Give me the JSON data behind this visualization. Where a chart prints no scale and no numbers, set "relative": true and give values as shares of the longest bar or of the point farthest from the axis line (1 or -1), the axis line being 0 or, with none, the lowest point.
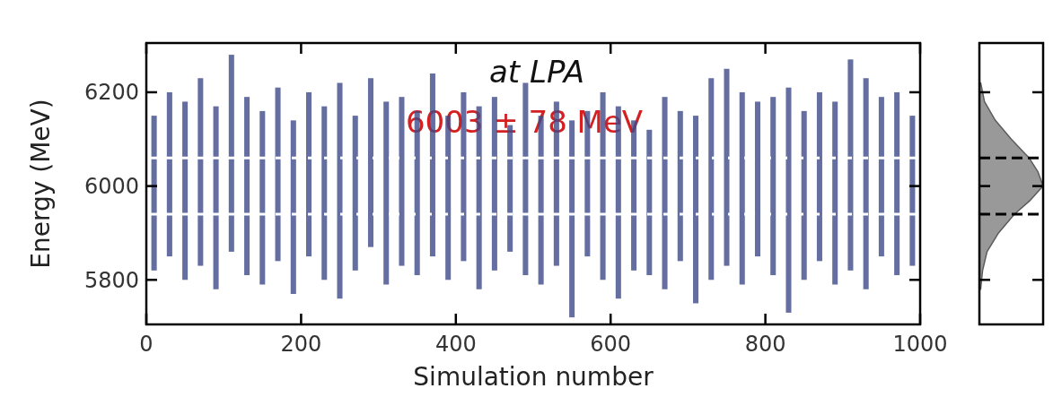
{
  "chart_data": [
    {
      "type": "bar",
      "xlabel": "Simulation number",
      "ylabel": "Energy (MeV)",
      "annotations": [
        "at LPA",
        "6003 ± 78 MeV"
      ],
      "x": [
        10,
        30,
        50,
        70,
        90,
        110,
        130,
        150,
        170,
        190,
        210,
        230,
        250,
        270,
        290,
        310,
        330,
        350,
        370,
        390,
        410,
        430,
        450,
        470,
        490,
        510,
        530,
        550,
        570,
        590,
        610,
        630,
        650,
        670,
        690,
        710,
        730,
        750,
        770,
        790,
        810,
        830,
        850,
        870,
        890,
        910,
        930,
        950,
        970,
        990
      ],
      "base": [
        5820,
        5850,
        5800,
        5830,
        5780,
        5860,
        5810,
        5790,
        5840,
        5770,
        5850,
        5800,
        5760,
        5820,
        5870,
        5790,
        5830,
        5810,
        5850,
        5800,
        5840,
        5780,
        5820,
        5860,
        5810,
        5790,
        5830,
        5720,
        5850,
        5800,
        5760,
        5820,
        5810,
        5780,
        5840,
        5750,
        5800,
        5830,
        5790,
        5850,
        5810,
        5730,
        5800,
        5840,
        5790,
        5820,
        5780,
        5850,
        5810,
        5830
      ],
      "values": [
        330,
        350,
        380,
        400,
        390,
        420,
        380,
        370,
        370,
        370,
        350,
        370,
        460,
        330,
        360,
        390,
        360,
        350,
        390,
        350,
        360,
        390,
        370,
        270,
        410,
        360,
        350,
        420,
        310,
        400,
        410,
        320,
        310,
        410,
        320,
        400,
        430,
        420,
        410,
        330,
        380,
        480,
        360,
        360,
        390,
        450,
        450,
        340,
        390,
        320
      ],
      "color": "#3e4a89",
      "xlim": [
        0,
        1000
      ],
      "xticks": [
        0,
        200,
        400,
        600,
        800,
        1000
      ],
      "ylim": [
        5705,
        6305
      ],
      "yticks": [
        5800,
        6000,
        6200
      ],
      "ref_lines": [
        {
          "axis": "y",
          "value": 6060,
          "color": "#ffffff",
          "line_style": "dashed"
        },
        {
          "axis": "y",
          "value": 5940,
          "color": "#ffffff",
          "line_style": "dashed"
        }
      ]
    },
    {
      "type": "area",
      "orientation": "horizontal",
      "relative": true,
      "color": "#808080",
      "tick_labels": false,
      "x": [
        5780,
        5820,
        5860,
        5900,
        5940,
        5970,
        6000,
        6030,
        6060,
        6100,
        6140,
        6180,
        6220
      ],
      "values": [
        0.02,
        0.05,
        0.12,
        0.3,
        0.55,
        0.8,
        1,
        0.92,
        0.78,
        0.5,
        0.25,
        0.08,
        0.02
      ],
      "ylim": [
        5705,
        6305
      ],
      "yticks": [
        5800,
        6000,
        6200
      ],
      "ref_lines": [
        {
          "axis": "y",
          "value": 6060,
          "color": "#000000",
          "line_style": "dashed"
        },
        {
          "axis": "y",
          "value": 5940,
          "color": "#000000",
          "line_style": "dashed"
        }
      ]
    }
  ]
}
